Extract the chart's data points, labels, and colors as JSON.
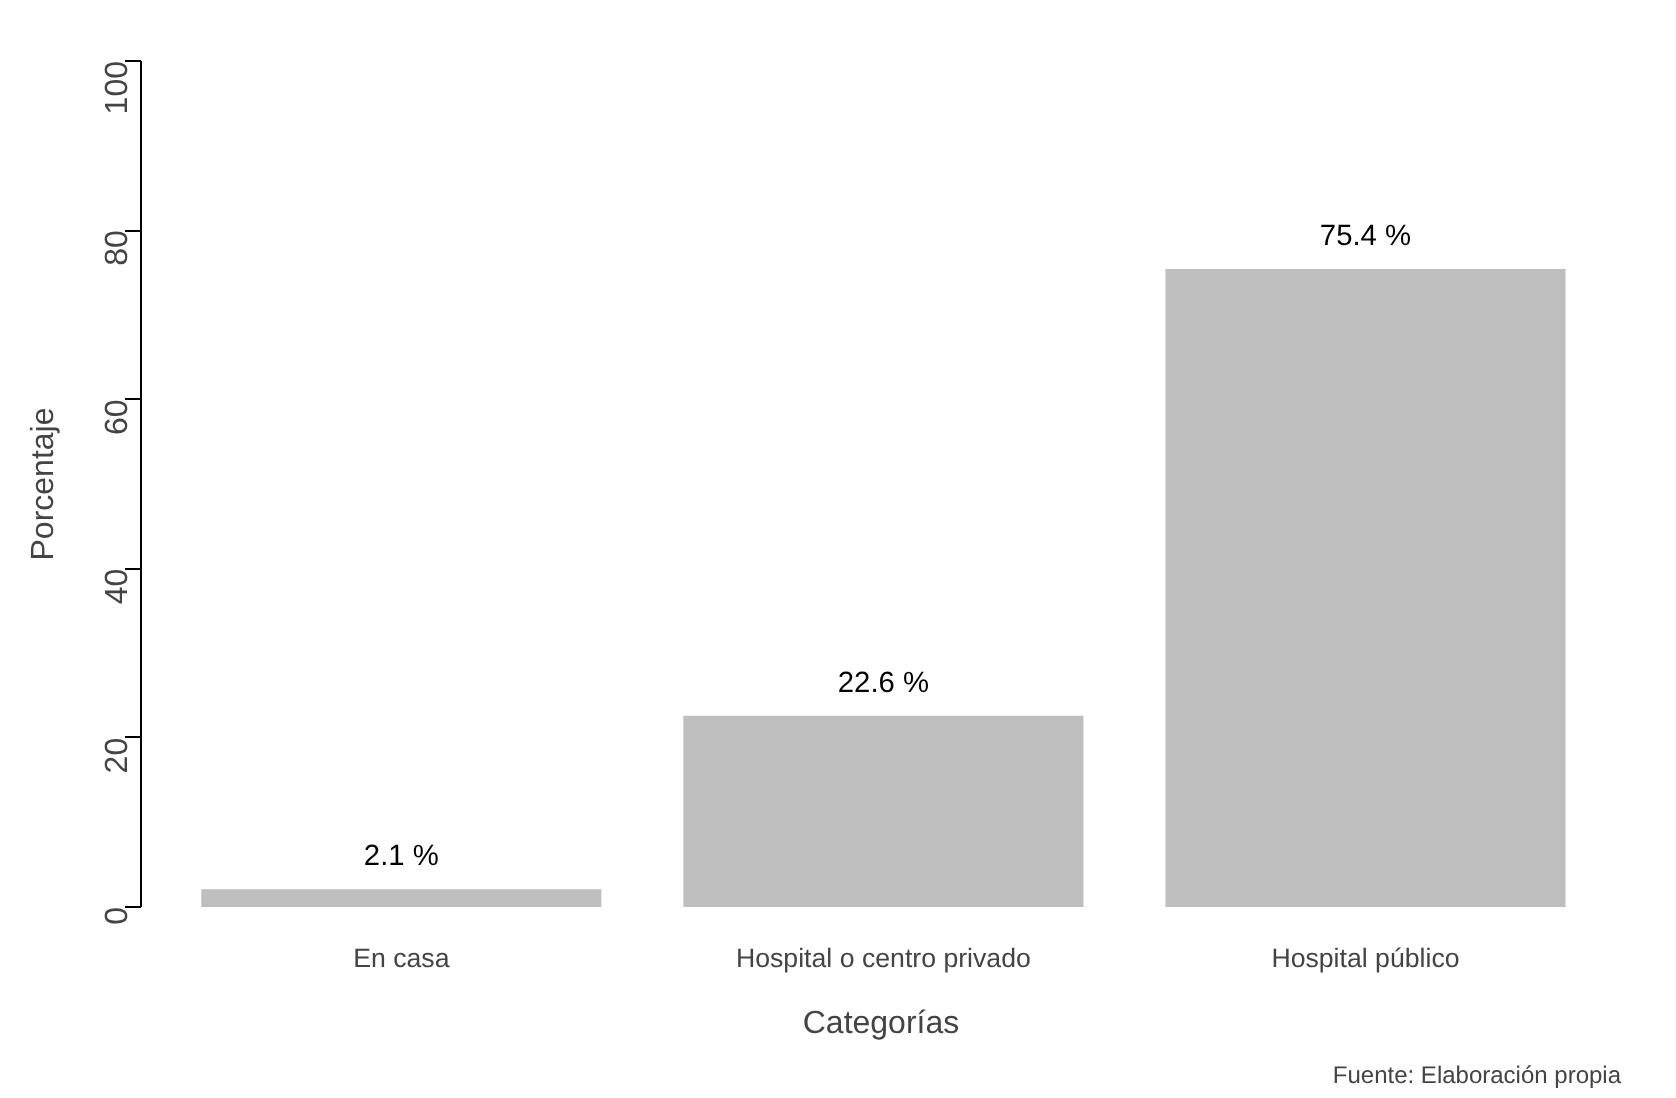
{
  "chart_data": {
    "type": "bar",
    "xlabel": "Categorías",
    "ylabel": "Porcentaje",
    "categories": [
      "En casa",
      "Hospital o centro privado",
      "Hospital público"
    ],
    "values": [
      2.1,
      22.6,
      75.4
    ],
    "color": "#bebebe",
    "value_labels": [
      "2.1 %",
      "22.6 %",
      "75.4 %"
    ],
    "ylim": [
      0,
      100
    ],
    "yticks": [
      0,
      20,
      40,
      60,
      80,
      100
    ],
    "grid": false,
    "annotations": [
      "Fuente: Elaboración propia"
    ]
  }
}
